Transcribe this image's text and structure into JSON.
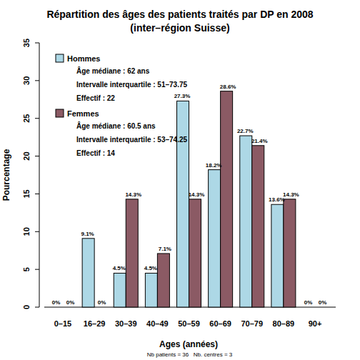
{
  "chart_data": {
    "type": "bar",
    "title": "Répartition des âges des patients traités par DP en 2008",
    "subtitle": "(inter–région Suisse)",
    "x_label": "Ages (années)",
    "y_label": "Pourcentage",
    "footnote": [
      "Nb patients =  36",
      "Nb. centres =  3"
    ],
    "categories": [
      "0–15",
      "16–29",
      "30–39",
      "40–49",
      "50–59",
      "60–69",
      "70–79",
      "80–89",
      "90+"
    ],
    "series": [
      {
        "name": "Hommes",
        "color": "#add8e6",
        "values": [
          0,
          9.1,
          4.5,
          4.5,
          27.3,
          18.2,
          22.7,
          13.6,
          0
        ],
        "value_labels": [
          "0%",
          "9.1%",
          "4.5%",
          "4.5%",
          "27.3%",
          "18.2%",
          "22.7%",
          "13.6%",
          "0%"
        ],
        "annotations": [
          "Âge médiane : 62 ans",
          "Intervalle interquartile : 51–73.75",
          "Effectif :  22"
        ]
      },
      {
        "name": "Femmes",
        "color": "#8b5a64",
        "values": [
          0,
          0,
          14.3,
          7.1,
          14.3,
          28.6,
          21.4,
          14.3,
          0
        ],
        "value_labels": [
          "0%",
          "0%",
          "14.3%",
          "7.1%",
          "14.3%",
          "28.6%",
          "21.4%",
          "14.3%",
          "0%"
        ],
        "annotations": [
          "Âge médiane : 60.5 ans",
          "Intervalle interquartile : 53–74.25",
          "Effectif :  14"
        ]
      }
    ],
    "ylim": [
      0,
      35
    ],
    "yticks": [
      0,
      5,
      10,
      15,
      20,
      25,
      30,
      35
    ],
    "grid": false,
    "legend": "top-left",
    "data_labels": true
  }
}
